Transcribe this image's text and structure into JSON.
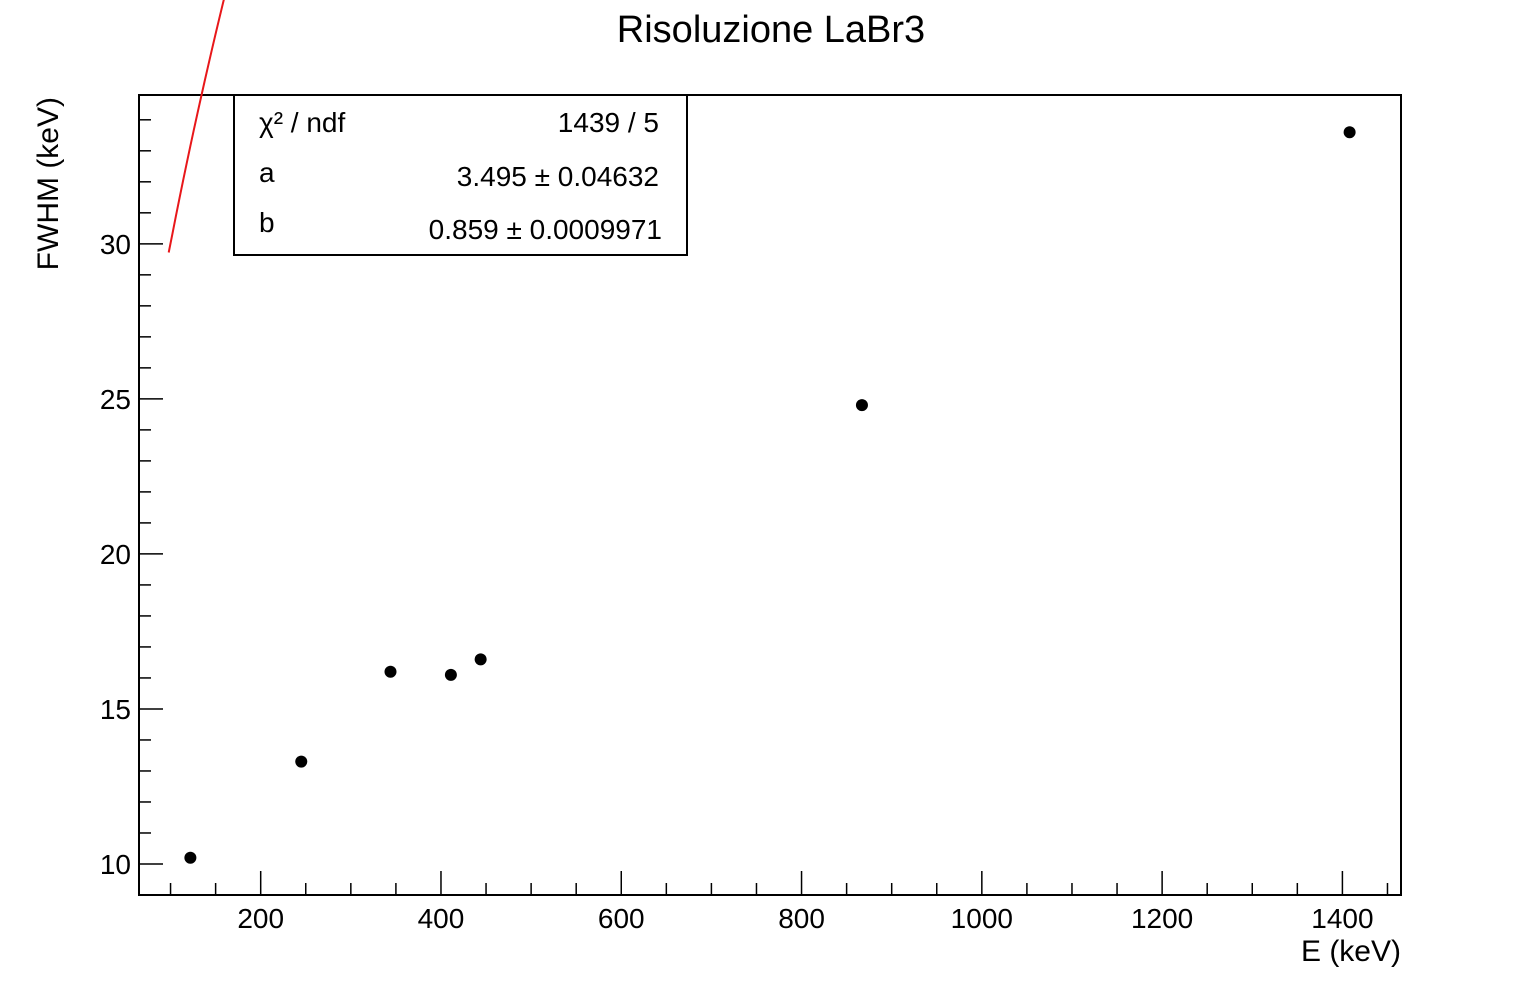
{
  "chart_data": {
    "type": "scatter",
    "title": "Risoluzione LaBr3",
    "xlabel": "E (keV)",
    "ylabel": "FWHM (keV)",
    "xlim": [
      65,
      1465
    ],
    "ylim": [
      9.0,
      34.8
    ],
    "x_major_ticks": [
      200,
      400,
      600,
      800,
      1000,
      1200,
      1400
    ],
    "x_tick_labels": [
      "200",
      "400",
      "600",
      "800",
      "1000",
      "1200",
      "1400"
    ],
    "y_major_ticks": [
      10,
      15,
      20,
      25,
      30
    ],
    "y_tick_labels": [
      "10",
      "15",
      "20",
      "25",
      "30"
    ],
    "grid": false,
    "points": [
      {
        "x": 122,
        "y": 10.2
      },
      {
        "x": 245,
        "y": 13.3
      },
      {
        "x": 344,
        "y": 16.2
      },
      {
        "x": 411,
        "y": 16.1
      },
      {
        "x": 444,
        "y": 16.6
      },
      {
        "x": 867,
        "y": 24.8
      },
      {
        "x": 1408,
        "y": 33.6
      }
    ],
    "fit": {
      "a": 3.495,
      "b": 0.859,
      "x_range": [
        98,
        1460
      ],
      "color": "#e8171a"
    },
    "stats": {
      "rows": [
        {
          "label": "χ² / ndf",
          "value": "1439 / 5"
        },
        {
          "label": "a",
          "value": "3.495 ± 0.04632"
        },
        {
          "label": "b",
          "value": "0.859 ± 0.0009971"
        }
      ]
    },
    "marker_color": "#000000"
  }
}
